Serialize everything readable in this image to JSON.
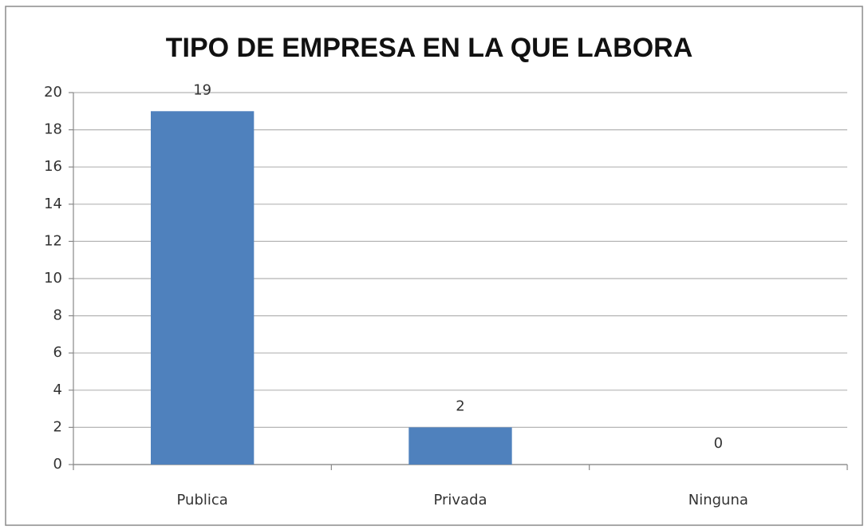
{
  "chart_data": {
    "type": "bar",
    "title": "TIPO DE EMPRESA EN LA QUE LABORA",
    "categories": [
      "Publica",
      "Privada",
      "Ninguna"
    ],
    "values": [
      19,
      2,
      0
    ],
    "color": "#4f81bd",
    "ylim": [
      0,
      20
    ],
    "yticks": [
      0,
      2,
      4,
      6,
      8,
      10,
      12,
      14,
      16,
      18,
      20
    ],
    "grid": true
  }
}
